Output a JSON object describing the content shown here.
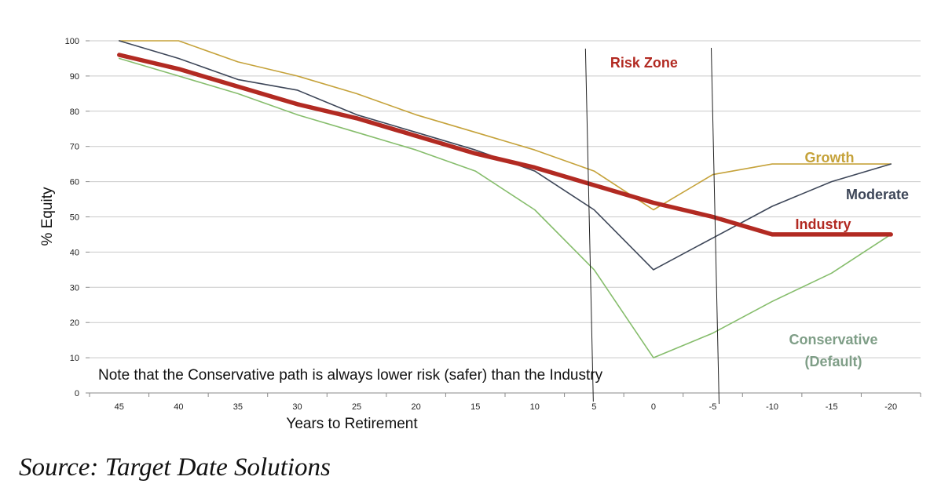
{
  "chart_data": {
    "type": "line",
    "x": [
      45,
      40,
      35,
      30,
      25,
      20,
      15,
      10,
      5,
      0,
      -5,
      -10,
      -15,
      -20
    ],
    "x_tick_labels": [
      "45",
      "40",
      "35",
      "30",
      "25",
      "20",
      "15",
      "10",
      "5",
      "0",
      "-5",
      "-10",
      "-15",
      "-20"
    ],
    "y_tick_labels": [
      "0",
      "10",
      "20",
      "30",
      "40",
      "50",
      "60",
      "70",
      "80",
      "90",
      "100"
    ],
    "ylim": [
      0,
      100
    ],
    "xlabel": "Years to Retirement",
    "ylabel": "% Equity",
    "grid": "horizontal",
    "series": [
      {
        "key": "growth",
        "name": "Growth",
        "color": "#c5a23a",
        "width": 1.6,
        "values": [
          100,
          100,
          94,
          90,
          85,
          79,
          74,
          69,
          63,
          52,
          62,
          65,
          65,
          65
        ]
      },
      {
        "key": "moderate",
        "name": "Moderate",
        "color": "#3d4658",
        "width": 1.6,
        "values": [
          100,
          95,
          89,
          86,
          79,
          74,
          69,
          63,
          52,
          35,
          44,
          53,
          60,
          65
        ]
      },
      {
        "key": "conservative",
        "name": "Conservative",
        "label_line2": "(Default)",
        "color": "#86bd6c",
        "label_color": "#7f9e87",
        "width": 1.6,
        "values": [
          95,
          90,
          85,
          79,
          74,
          69,
          63,
          52,
          35,
          10,
          17,
          26,
          34,
          45
        ]
      },
      {
        "key": "industry",
        "name": "Industry",
        "color": "#b22a22",
        "width": 5.5,
        "values": [
          96,
          92,
          87,
          82,
          78,
          73,
          68,
          64,
          59,
          54,
          50,
          45,
          45,
          45
        ]
      }
    ],
    "annotations": {
      "risk_zone": {
        "label": "Risk Zone",
        "color": "#b22a22",
        "x_from": 5,
        "x_to": -5
      },
      "note": "Note that the Conservative path is always lower risk (safer) than the Industry"
    }
  },
  "source": "Source: Target Date Solutions"
}
